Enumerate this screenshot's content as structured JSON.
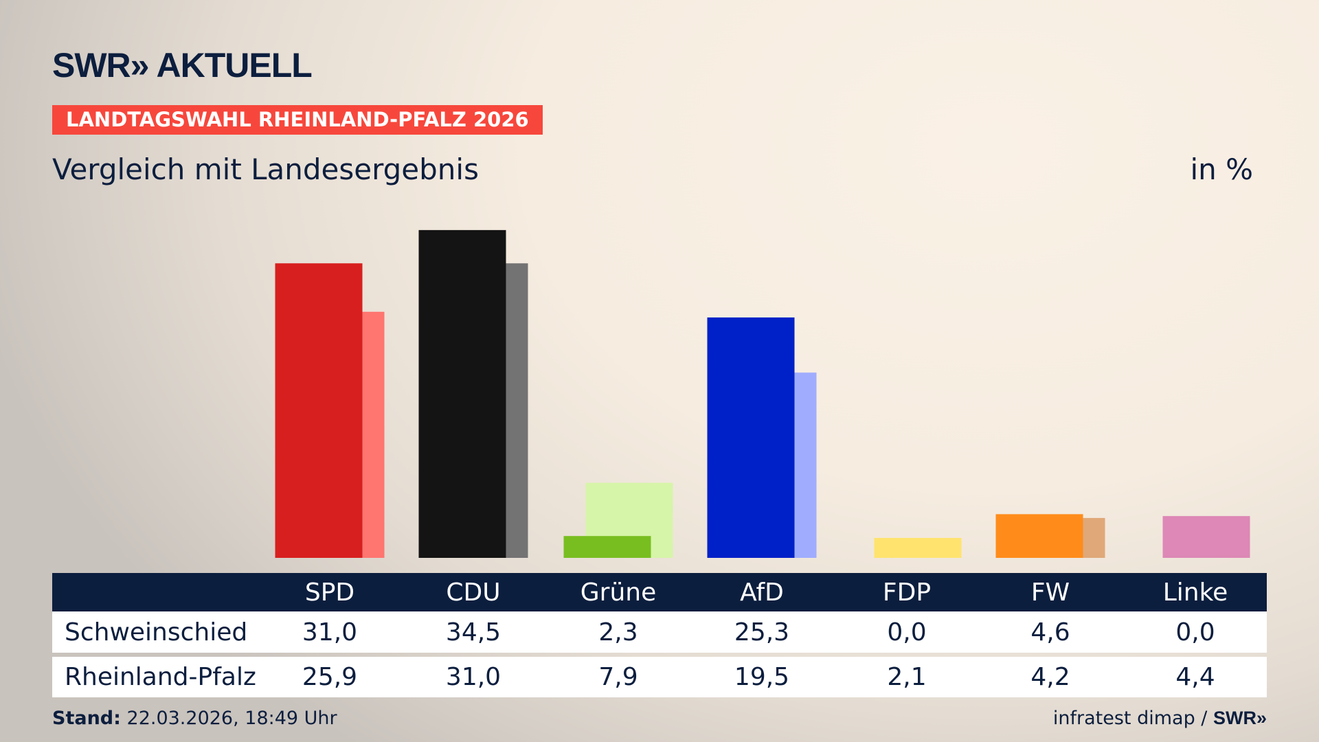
{
  "logo": "SWR» AKTUELL",
  "banner": "LANDTAGSWAHL RHEINLAND-PFALZ 2026",
  "subtitle": "Vergleich mit Landesergebnis",
  "unit": "in %",
  "colors": {
    "navy": "#0c1e3e",
    "banner": "#f7473c"
  },
  "chart_data": {
    "type": "bar",
    "categories": [
      "SPD",
      "CDU",
      "Grüne",
      "AfD",
      "FDP",
      "FW",
      "Linke"
    ],
    "series": [
      {
        "name": "Schweinschied",
        "values": [
          "31,0",
          "34,5",
          "2,3",
          "25,3",
          "0,0",
          "4,6",
          "0,0"
        ],
        "numeric": [
          31.0,
          34.5,
          2.3,
          25.3,
          0.0,
          4.6,
          0.0
        ],
        "colors": [
          "#d81f1f",
          "#141414",
          "#78be20",
          "#0021c8",
          "#ffe36e",
          "#ff8c1a",
          "#dd88b6"
        ]
      },
      {
        "name": "Rheinland-Pfalz",
        "values": [
          "25,9",
          "31,0",
          "7,9",
          "19,5",
          "2,1",
          "4,2",
          "4,4"
        ],
        "numeric": [
          25.9,
          31.0,
          7.9,
          19.5,
          2.1,
          4.2,
          4.4
        ],
        "colors": [
          "#ff7570",
          "#737373",
          "#d6f5a8",
          "#a0adff",
          "#ffe36e",
          "#e0a878",
          "#dd88b6"
        ]
      }
    ]
  },
  "footer": {
    "stand_label": "Stand:",
    "stand_value": "22.03.2026, 18:49 Uhr",
    "source": "infratest dimap / ",
    "source_logo": "SWR»"
  }
}
